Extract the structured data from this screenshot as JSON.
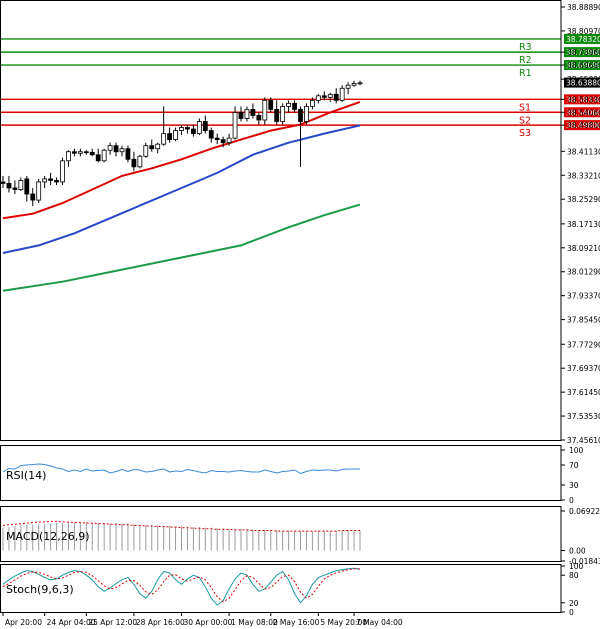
{
  "chart_data": {
    "type": "candlestick",
    "main": {
      "yticks": [
        "38.88890",
        "38.80970",
        "38.73960",
        "38.69690",
        "38.65000",
        "38.58330",
        "38.54060",
        "38.49800",
        "38.41130",
        "38.33210",
        "38.25290",
        "38.17130",
        "38.09210",
        "38.01290",
        "37.93370",
        "37.85450",
        "37.77290",
        "37.69370",
        "37.61450",
        "37.53530",
        "37.45610"
      ],
      "ylim": [
        37.4561,
        38.8889
      ],
      "levels": [
        {
          "label": "R3",
          "value": 38.7832,
          "value_text": "38.78320",
          "color": "#0a8a0a"
        },
        {
          "label": "R2",
          "value": 38.7396,
          "value_text": "38.73960",
          "color": "#0a8a0a"
        },
        {
          "label": "R1",
          "value": 38.6969,
          "value_text": "38.69690",
          "color": "#0a8a0a"
        },
        {
          "label": "S1",
          "value": 38.5833,
          "value_text": "38.58330",
          "color": "#dd0000"
        },
        {
          "label": "S2",
          "value": 38.5406,
          "value_text": "38.54060",
          "color": "#dd0000"
        },
        {
          "label": "S3",
          "value": 38.498,
          "value_text": "38.49800",
          "color": "#dd0000"
        }
      ],
      "last_price": "38.63880",
      "candles": [
        [
          38.31,
          38.33,
          38.29,
          38.305
        ],
        [
          38.305,
          38.33,
          38.275,
          38.29
        ],
        [
          38.29,
          38.315,
          38.27,
          38.285
        ],
        [
          38.285,
          38.325,
          38.28,
          38.315
        ],
        [
          38.32,
          38.33,
          38.245,
          38.27
        ],
        [
          38.27,
          38.29,
          38.23,
          38.25
        ],
        [
          38.25,
          38.32,
          38.24,
          38.31
        ],
        [
          38.31,
          38.33,
          38.29,
          38.32
        ],
        [
          38.32,
          38.34,
          38.3,
          38.315
        ],
        [
          38.315,
          38.325,
          38.3,
          38.31
        ],
        [
          38.31,
          38.39,
          38.3,
          38.38
        ],
        [
          38.38,
          38.415,
          38.36,
          38.41
        ],
        [
          38.41,
          38.42,
          38.395,
          38.405
        ],
        [
          38.405,
          38.42,
          38.395,
          38.41
        ],
        [
          38.41,
          38.415,
          38.4,
          38.408
        ],
        [
          38.408,
          38.42,
          38.395,
          38.4
        ],
        [
          38.4,
          38.42,
          38.375,
          38.38
        ],
        [
          38.38,
          38.42,
          38.375,
          38.415
        ],
        [
          38.415,
          38.44,
          38.4,
          38.43
        ],
        [
          38.43,
          38.44,
          38.395,
          38.41
        ],
        [
          38.41,
          38.43,
          38.395,
          38.42
        ],
        [
          38.42,
          38.43,
          38.375,
          38.385
        ],
        [
          38.385,
          38.41,
          38.345,
          38.36
        ],
        [
          38.36,
          38.4,
          38.355,
          38.395
        ],
        [
          38.395,
          38.44,
          38.39,
          38.43
        ],
        [
          38.43,
          38.45,
          38.41,
          38.42
        ],
        [
          38.42,
          38.44,
          38.405,
          38.435
        ],
        [
          38.435,
          38.56,
          38.43,
          38.47
        ],
        [
          38.47,
          38.49,
          38.44,
          38.45
        ],
        [
          38.45,
          38.49,
          38.445,
          38.48
        ],
        [
          38.48,
          38.5,
          38.465,
          38.49
        ],
        [
          38.49,
          38.5,
          38.47,
          38.485
        ],
        [
          38.485,
          38.5,
          38.46,
          38.47
        ],
        [
          38.47,
          38.52,
          38.465,
          38.51
        ],
        [
          38.51,
          38.53,
          38.47,
          38.48
        ],
        [
          38.48,
          38.49,
          38.44,
          38.455
        ],
        [
          38.455,
          38.47,
          38.435,
          38.45
        ],
        [
          38.45,
          38.46,
          38.425,
          38.44
        ],
        [
          38.44,
          38.47,
          38.43,
          38.455
        ],
        [
          38.455,
          38.56,
          38.45,
          38.54
        ],
        [
          38.54,
          38.56,
          38.51,
          38.52
        ],
        [
          38.52,
          38.56,
          38.51,
          38.55
        ],
        [
          38.55,
          38.57,
          38.52,
          38.53
        ],
        [
          38.53,
          38.54,
          38.5,
          38.515
        ],
        [
          38.515,
          38.59,
          38.5,
          38.58
        ],
        [
          38.58,
          38.59,
          38.54,
          38.55
        ],
        [
          38.55,
          38.58,
          38.5,
          38.51
        ],
        [
          38.51,
          38.57,
          38.5,
          38.56
        ],
        [
          38.56,
          38.58,
          38.54,
          38.57
        ],
        [
          38.57,
          38.58,
          38.54,
          38.55
        ],
        [
          38.55,
          38.56,
          38.36,
          38.51
        ],
        [
          38.51,
          38.57,
          38.5,
          38.56
        ],
        [
          38.56,
          38.59,
          38.55,
          38.58
        ],
        [
          38.58,
          38.6,
          38.57,
          38.595
        ],
        [
          38.595,
          38.61,
          38.58,
          38.59
        ],
        [
          38.59,
          38.605,
          38.575,
          38.6
        ],
        [
          38.6,
          38.62,
          38.57,
          38.58
        ],
        [
          38.58,
          38.63,
          38.575,
          38.62
        ],
        [
          38.62,
          38.64,
          38.6,
          38.63
        ],
        [
          38.63,
          38.645,
          38.625,
          38.636
        ],
        [
          38.636,
          38.645,
          38.63,
          38.638
        ]
      ],
      "ma_fast": [
        [
          0,
          38.19
        ],
        [
          5,
          38.205
        ],
        [
          10,
          38.24
        ],
        [
          15,
          38.285
        ],
        [
          20,
          38.33
        ],
        [
          25,
          38.355
        ],
        [
          30,
          38.385
        ],
        [
          35,
          38.42
        ],
        [
          40,
          38.45
        ],
        [
          45,
          38.48
        ],
        [
          50,
          38.5
        ],
        [
          55,
          38.54
        ],
        [
          60,
          38.575
        ]
      ],
      "ma_mid": [
        [
          0,
          38.075
        ],
        [
          6,
          38.1
        ],
        [
          12,
          38.14
        ],
        [
          18,
          38.19
        ],
        [
          24,
          38.24
        ],
        [
          30,
          38.29
        ],
        [
          36,
          38.34
        ],
        [
          42,
          38.4
        ],
        [
          48,
          38.44
        ],
        [
          54,
          38.47
        ],
        [
          60,
          38.497
        ]
      ],
      "ma_slow": [
        [
          0,
          37.95
        ],
        [
          10,
          37.98
        ],
        [
          20,
          38.02
        ],
        [
          30,
          38.06
        ],
        [
          40,
          38.1
        ],
        [
          48,
          38.16
        ],
        [
          54,
          38.2
        ],
        [
          60,
          38.235
        ]
      ]
    },
    "rsi": {
      "title": "RSI(14)",
      "ticks": [
        "100",
        "70",
        "30",
        "0"
      ],
      "ylim": [
        0,
        100
      ],
      "values": [
        56,
        63,
        62,
        69,
        70,
        71,
        72,
        71,
        68,
        64,
        62,
        57,
        60,
        57,
        62,
        58,
        59,
        60,
        54,
        57,
        61,
        57,
        61,
        60,
        56,
        57,
        60,
        62,
        56,
        58,
        57,
        61,
        59,
        56,
        54,
        59,
        57,
        57,
        56,
        58,
        59,
        57,
        56,
        56,
        60,
        57,
        54,
        57,
        58,
        60,
        53,
        57,
        60,
        59,
        60,
        60,
        58,
        61,
        62,
        62,
        62
      ]
    },
    "macd": {
      "title": "MACD(12,26,9)",
      "ticks": [
        "0.069223",
        "0.00",
        "-0.018437"
      ],
      "ylim": [
        -0.018437,
        0.069223
      ],
      "hist": [
        0.04,
        0.041,
        0.043,
        0.044,
        0.045,
        0.045,
        0.046,
        0.047,
        0.047,
        0.048,
        0.048,
        0.049,
        0.049,
        0.05,
        0.05,
        0.049,
        0.049,
        0.048,
        0.048,
        0.048,
        0.047,
        0.047,
        0.046,
        0.045,
        0.045,
        0.044,
        0.044,
        0.043,
        0.043,
        0.042,
        0.042,
        0.041,
        0.041,
        0.041,
        0.04,
        0.04,
        0.039,
        0.039,
        0.038,
        0.038,
        0.038,
        0.037,
        0.037,
        0.036,
        0.036,
        0.036,
        0.036,
        0.035,
        0.035,
        0.035,
        0.034,
        0.034,
        0.034,
        0.034,
        0.034,
        0.034,
        0.035,
        0.035,
        0.035,
        0.035,
        0.035
      ],
      "signal": [
        0.044,
        0.045,
        0.046,
        0.047,
        0.048,
        0.049,
        0.05,
        0.05,
        0.051,
        0.051,
        0.05,
        0.05,
        0.049,
        0.049,
        0.048,
        0.048,
        0.047,
        0.047,
        0.046,
        0.046,
        0.045,
        0.045,
        0.044,
        0.044,
        0.043,
        0.043,
        0.042,
        0.042,
        0.041,
        0.041,
        0.04,
        0.04,
        0.039,
        0.039,
        0.038,
        0.038,
        0.037,
        0.037,
        0.037,
        0.036,
        0.036,
        0.036,
        0.035,
        0.035,
        0.035,
        0.035,
        0.034,
        0.034,
        0.034,
        0.034,
        0.034,
        0.034,
        0.034,
        0.034,
        0.034,
        0.034,
        0.034,
        0.035,
        0.035,
        0.035,
        0.035
      ]
    },
    "stoch": {
      "title": "Stoch(9,6,3)",
      "ticks": [
        "100",
        "80",
        "20",
        "0"
      ],
      "ylim": [
        0,
        100
      ],
      "k": [
        60,
        70,
        78,
        85,
        90,
        88,
        82,
        75,
        70,
        72,
        80,
        86,
        90,
        88,
        80,
        70,
        55,
        45,
        52,
        62,
        70,
        75,
        60,
        40,
        30,
        45,
        70,
        88,
        85,
        70,
        60,
        72,
        80,
        75,
        55,
        30,
        15,
        25,
        50,
        72,
        85,
        80,
        60,
        45,
        50,
        65,
        80,
        88,
        70,
        40,
        20,
        35,
        60,
        75,
        80,
        85,
        90,
        92,
        94,
        95,
        93
      ],
      "d": [
        55,
        62,
        70,
        78,
        84,
        87,
        86,
        82,
        76,
        72,
        74,
        80,
        86,
        88,
        86,
        79,
        68,
        57,
        50,
        53,
        61,
        69,
        68,
        58,
        44,
        38,
        48,
        66,
        80,
        81,
        72,
        67,
        72,
        76,
        70,
        53,
        33,
        22,
        30,
        48,
        68,
        79,
        75,
        62,
        50,
        53,
        65,
        77,
        80,
        66,
        43,
        30,
        38,
        56,
        72,
        80,
        85,
        89,
        92,
        94,
        94
      ]
    },
    "xticks": [
      {
        "i": 0,
        "label": "Apr 20:00"
      },
      {
        "i": 7,
        "label": "24 Apr 04:00"
      },
      {
        "i": 14,
        "label": "25 Apr 12:00"
      },
      {
        "i": 22,
        "label": "28 Apr 16:00"
      },
      {
        "i": 30,
        "label": "30 Apr 00:00"
      },
      {
        "i": 38,
        "label": "1 May 08:00"
      },
      {
        "i": 45,
        "label": "2 May 16:00"
      },
      {
        "i": 53,
        "label": "5 May 20:00"
      },
      {
        "i": 59,
        "label": "7 May 04:00"
      }
    ]
  },
  "colors": {
    "up": "#ffffff",
    "down": "#000000",
    "ma_fast": "#dd0000",
    "ma_mid": "#2848c8",
    "ma_slow": "#1a9a4a",
    "rsi": "#3a8ad8",
    "macd_signal": "#dd0000",
    "macd_hist": "#9a9a9a",
    "stoch_k": "#1a9aa0",
    "stoch_d": "#dd0000",
    "grid": "#e6e6e6",
    "level_box_green": "#0a8a0a",
    "level_box_red": "#dd0000",
    "last_box": "#000000"
  }
}
